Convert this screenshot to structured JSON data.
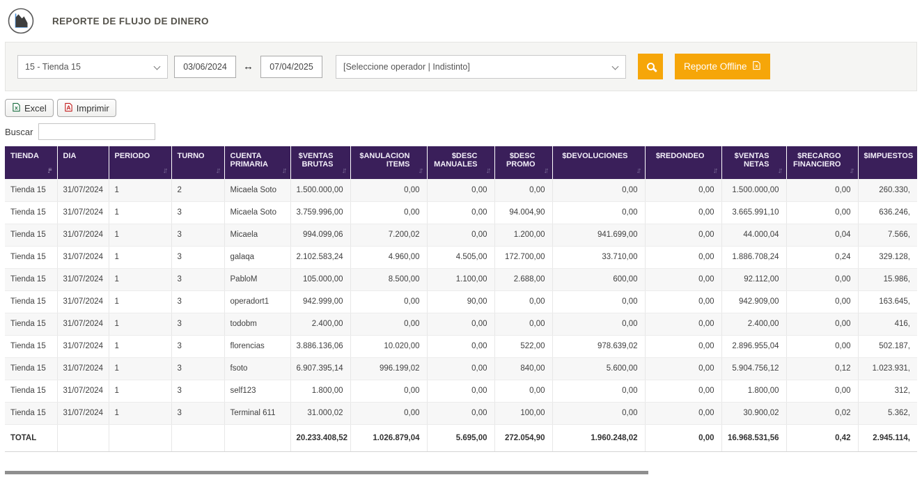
{
  "header": {
    "title": "REPORTE DE FLUJO DE DINERO",
    "logo_icon": "area-chart-icon"
  },
  "filters": {
    "store_selected": "15 - Tienda 15",
    "date_from": "03/06/2024",
    "date_to": "07/04/2025",
    "date_separator": "↔",
    "operator_selected": "[Seleccione operador | Indistinto]",
    "search_icon": "magnifier-icon",
    "report_offline_label": "Reporte Offline",
    "report_offline_icon": "excel-file-outline-icon"
  },
  "toolbar": {
    "excel_label": "Excel",
    "excel_icon": "excel-file-icon",
    "print_label": "Imprimir",
    "print_icon": "pdf-file-icon",
    "search_label": "Buscar",
    "search_value": ""
  },
  "colors": {
    "accent_orange": "#f6a609",
    "table_header_purple": "#3a1f5a",
    "excel_green": "#1d6f42",
    "pdf_red": "#c11e1e"
  },
  "table": {
    "columns": [
      {
        "label": "TIENDA",
        "align": "left",
        "sort": "amount"
      },
      {
        "label": "DIA",
        "align": "left",
        "sort": "none"
      },
      {
        "label": "PERIODO",
        "align": "left",
        "sort": "updown"
      },
      {
        "label": "TURNO",
        "align": "left",
        "sort": "updown"
      },
      {
        "label": "CUENTA PRIMARIA",
        "align": "left",
        "sort": "updown"
      },
      {
        "label": "$VENTAS BRUTAS",
        "align": "right",
        "sort": "updown"
      },
      {
        "label": "$ANULACION ITEMS",
        "align": "right",
        "sort": "updown"
      },
      {
        "label": "$DESC MANUALES",
        "align": "right",
        "sort": "updown"
      },
      {
        "label": "$DESC PROMO",
        "align": "right",
        "sort": "updown"
      },
      {
        "label": "$DEVOLUCIONES",
        "align": "right",
        "sort": "updown"
      },
      {
        "label": "$REDONDEO",
        "align": "right",
        "sort": "updown"
      },
      {
        "label": "$VENTAS NETAS",
        "align": "right",
        "sort": "updown"
      },
      {
        "label": "$RECARGO FINANCIERO",
        "align": "right",
        "sort": "updown"
      },
      {
        "label": "$IMPUESTOS",
        "align": "right",
        "sort": "none"
      }
    ],
    "rows": [
      [
        "Tienda 15",
        "31/07/2024",
        "1",
        "2",
        "Micaela Soto",
        "1.500.000,00",
        "0,00",
        "0,00",
        "0,00",
        "0,00",
        "0,00",
        "1.500.000,00",
        "0,00",
        "260.330,"
      ],
      [
        "Tienda 15",
        "31/07/2024",
        "1",
        "3",
        "Micaela Soto",
        "3.759.996,00",
        "0,00",
        "0,00",
        "94.004,90",
        "0,00",
        "0,00",
        "3.665.991,10",
        "0,00",
        "636.246,"
      ],
      [
        "Tienda 15",
        "31/07/2024",
        "1",
        "3",
        "Micaela",
        "994.099,06",
        "7.200,02",
        "0,00",
        "1.200,00",
        "941.699,00",
        "0,00",
        "44.000,04",
        "0,04",
        "7.566,"
      ],
      [
        "Tienda 15",
        "31/07/2024",
        "1",
        "3",
        "galaqa",
        "2.102.583,24",
        "4.960,00",
        "4.505,00",
        "172.700,00",
        "33.710,00",
        "0,00",
        "1.886.708,24",
        "0,24",
        "329.128,"
      ],
      [
        "Tienda 15",
        "31/07/2024",
        "1",
        "3",
        "PabloM",
        "105.000,00",
        "8.500,00",
        "1.100,00",
        "2.688,00",
        "600,00",
        "0,00",
        "92.112,00",
        "0,00",
        "15.986,"
      ],
      [
        "Tienda 15",
        "31/07/2024",
        "1",
        "3",
        "operadort1",
        "942.999,00",
        "0,00",
        "90,00",
        "0,00",
        "0,00",
        "0,00",
        "942.909,00",
        "0,00",
        "163.645,"
      ],
      [
        "Tienda 15",
        "31/07/2024",
        "1",
        "3",
        "todobm",
        "2.400,00",
        "0,00",
        "0,00",
        "0,00",
        "0,00",
        "0,00",
        "2.400,00",
        "0,00",
        "416,"
      ],
      [
        "Tienda 15",
        "31/07/2024",
        "1",
        "3",
        "florencias",
        "3.886.136,06",
        "10.020,00",
        "0,00",
        "522,00",
        "978.639,02",
        "0,00",
        "2.896.955,04",
        "0,00",
        "502.187,"
      ],
      [
        "Tienda 15",
        "31/07/2024",
        "1",
        "3",
        "fsoto",
        "6.907.395,14",
        "996.199,02",
        "0,00",
        "840,00",
        "5.600,00",
        "0,00",
        "5.904.756,12",
        "0,12",
        "1.023.931,"
      ],
      [
        "Tienda 15",
        "31/07/2024",
        "1",
        "3",
        "self123",
        "1.800,00",
        "0,00",
        "0,00",
        "0,00",
        "0,00",
        "0,00",
        "1.800,00",
        "0,00",
        "312,"
      ],
      [
        "Tienda 15",
        "31/07/2024",
        "1",
        "3",
        "Terminal 611",
        "31.000,02",
        "0,00",
        "0,00",
        "100,00",
        "0,00",
        "0,00",
        "30.900,02",
        "0,02",
        "5.362,"
      ]
    ],
    "total_row": [
      "TOTAL",
      "",
      "",
      "",
      "",
      "20.233.408,52",
      "1.026.879,04",
      "5.695,00",
      "272.054,90",
      "1.960.248,02",
      "0,00",
      "16.968.531,56",
      "0,42",
      "2.945.114,"
    ]
  }
}
